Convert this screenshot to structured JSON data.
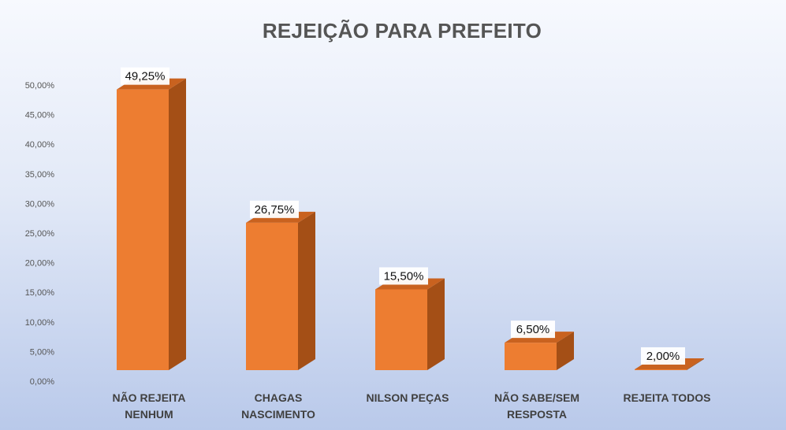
{
  "chart_data": {
    "type": "bar",
    "title": "REJEIÇÃO PARA PREFEITO",
    "categories": [
      [
        "NÃO REJEITA",
        "NENHUM"
      ],
      [
        "CHAGAS",
        "NASCIMENTO"
      ],
      [
        "NILSON PEÇAS"
      ],
      [
        "NÃO SABE/SEM",
        "RESPOSTA"
      ],
      [
        "REJEITA TODOS"
      ]
    ],
    "values": [
      49.25,
      26.75,
      15.5,
      6.5,
      2.0
    ],
    "data_labels": [
      "49,25%",
      "26,75%",
      "15,50%",
      "6,50%",
      "2,00%"
    ],
    "ylim": [
      0,
      50
    ],
    "yticks": [
      0,
      5,
      10,
      15,
      20,
      25,
      30,
      35,
      40,
      45,
      50
    ],
    "ytick_labels": [
      "0,00%",
      "5,00%",
      "10,00%",
      "15,00%",
      "20,00%",
      "25,00%",
      "30,00%",
      "35,00%",
      "40,00%",
      "45,00%",
      "50,00%"
    ],
    "bar_3d": true,
    "grid": false,
    "colors": {
      "bar_front": "#ed7d31",
      "bar_side": "#a44f16",
      "bar_top": "#c9621f",
      "label_text": "#111111",
      "axis_text": "#555555",
      "category_text": "#404040"
    }
  }
}
